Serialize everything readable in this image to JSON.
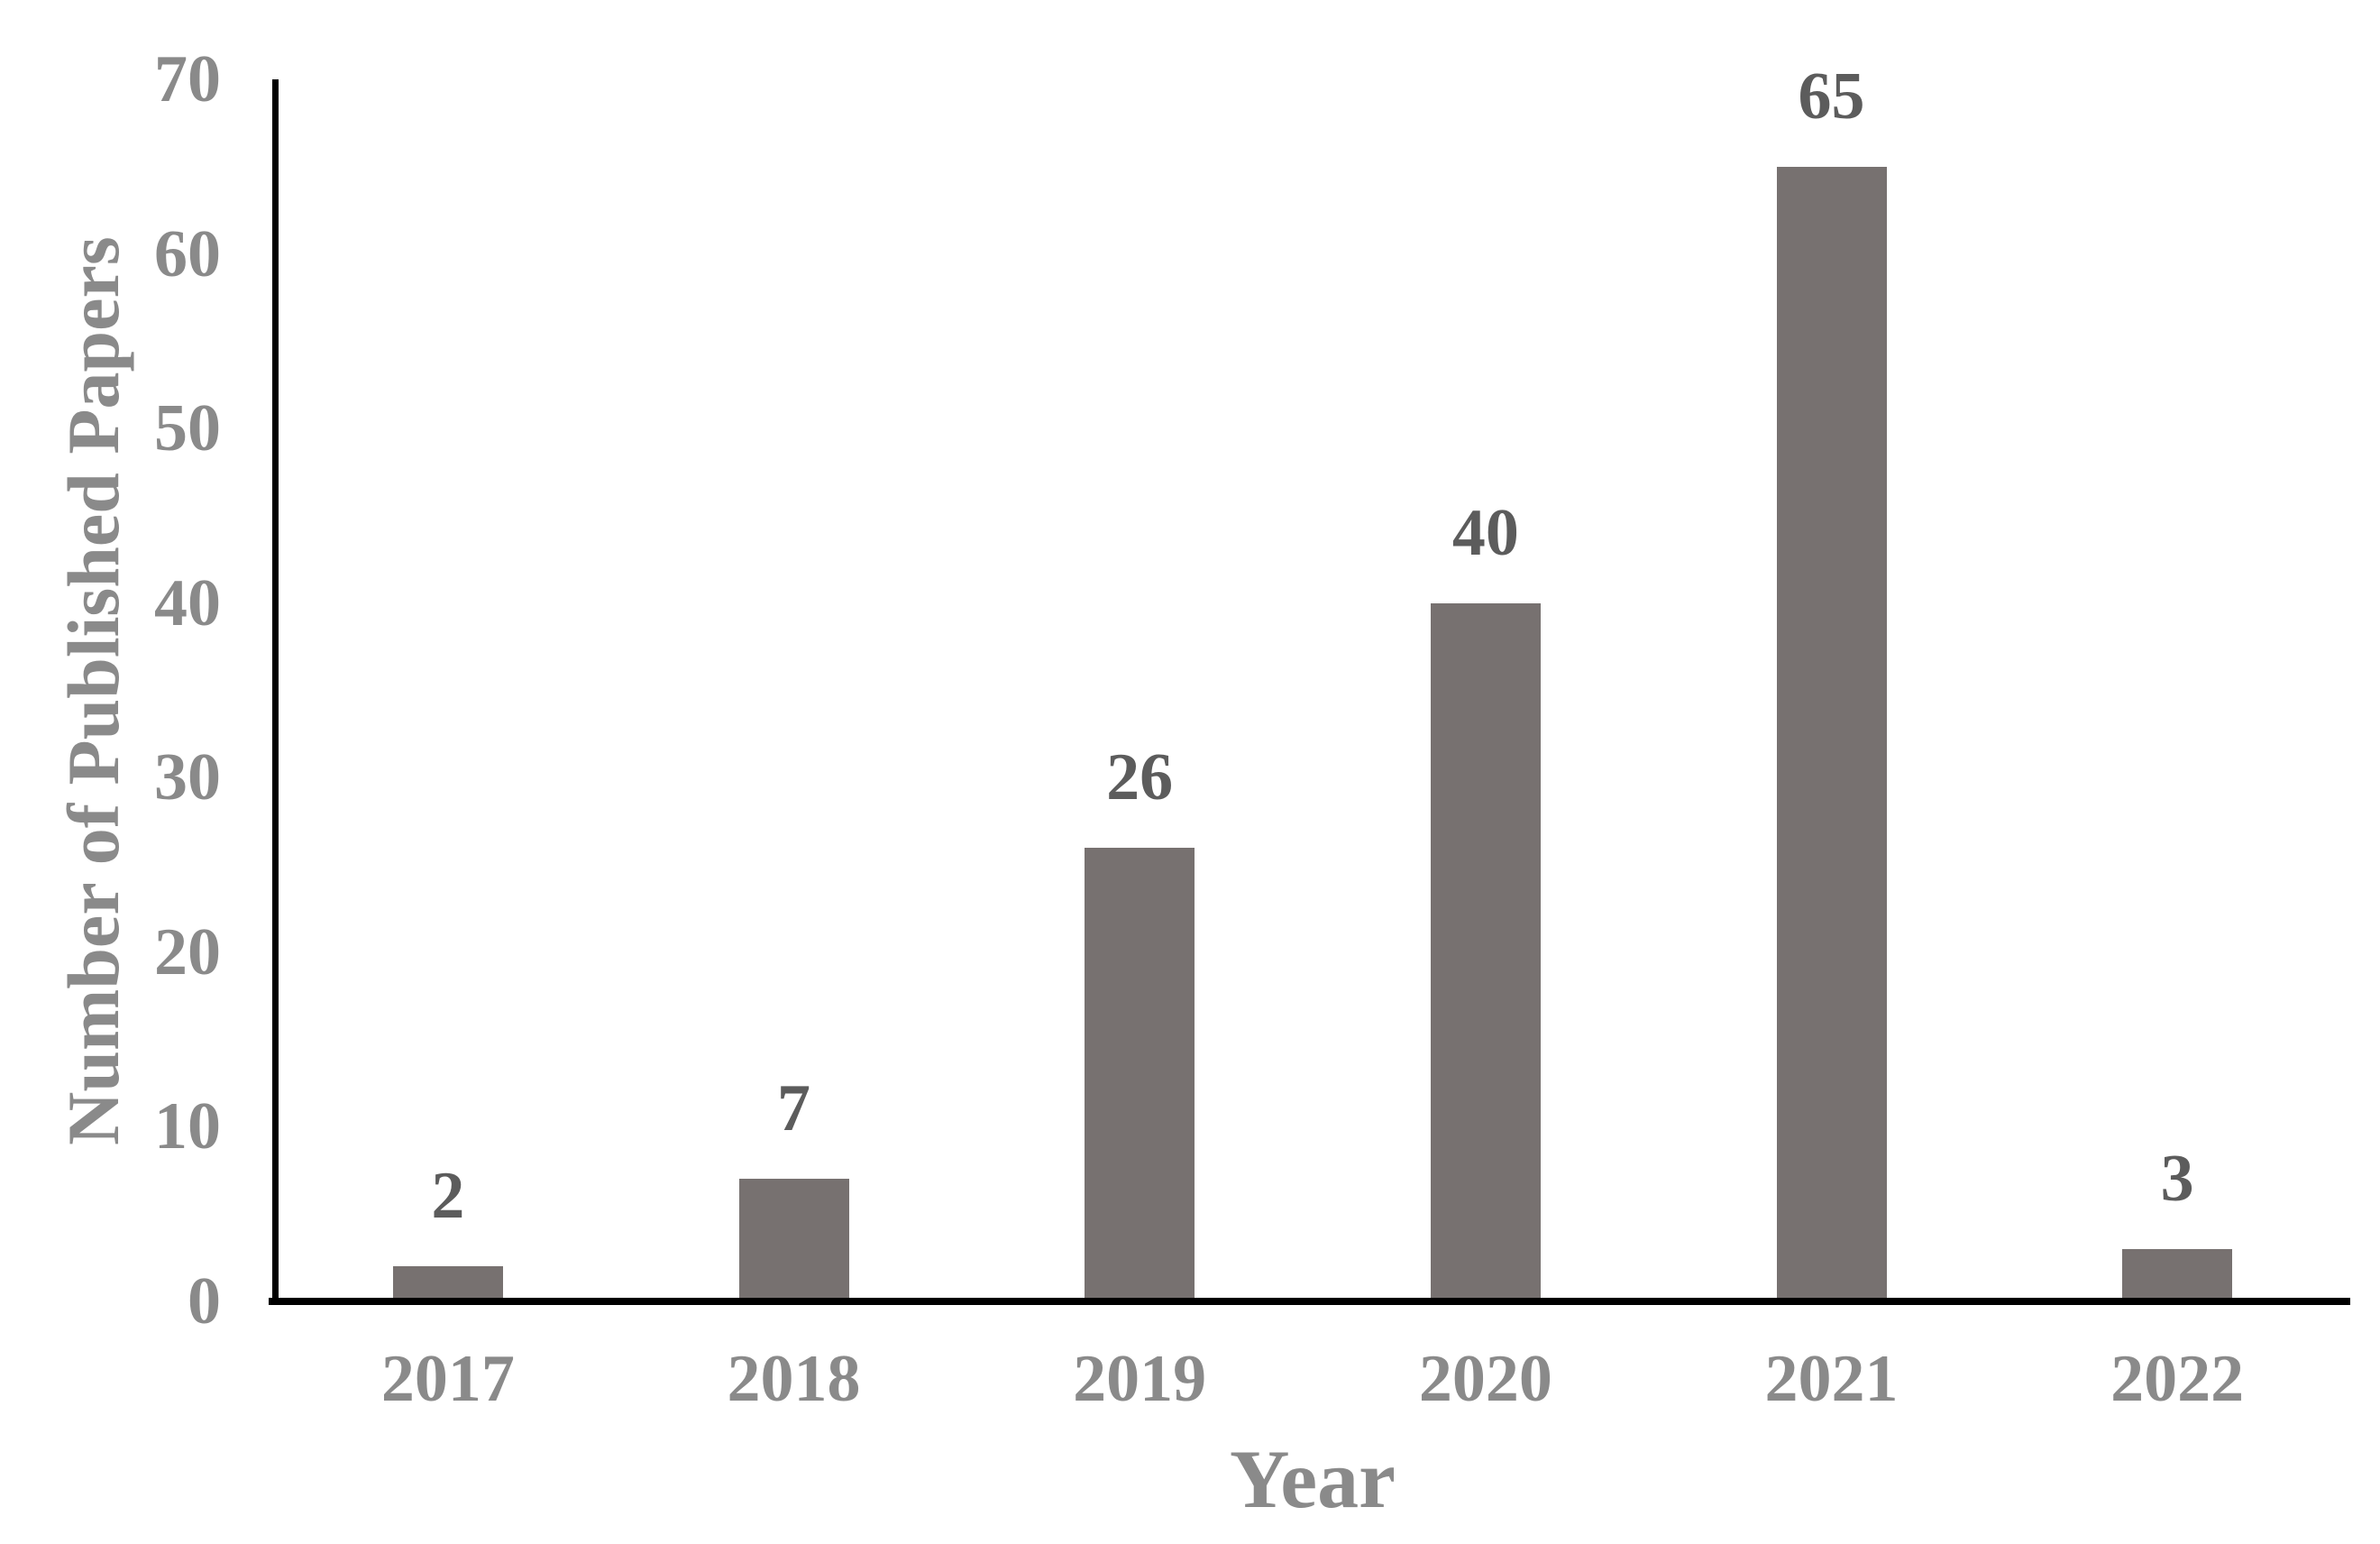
{
  "chart_data": {
    "type": "bar",
    "title": "",
    "categories": [
      "2017",
      "2018",
      "2019",
      "2020",
      "2021",
      "2022"
    ],
    "values": [
      2,
      7,
      26,
      40,
      65,
      3
    ],
    "xlabel": "Year",
    "ylabel": "Number of Published Papers",
    "ylim": [
      0,
      70
    ],
    "yticks": [
      0,
      10,
      20,
      30,
      40,
      50,
      60,
      70
    ],
    "grid": false,
    "legend_position": "none",
    "colors": {
      "bar": "#777170",
      "axis": "#000000",
      "tick_label": "#8a8a8a",
      "axis_title": "#8a8a8a",
      "data_label": "#5c5c5c",
      "background": "#ffffff"
    }
  }
}
